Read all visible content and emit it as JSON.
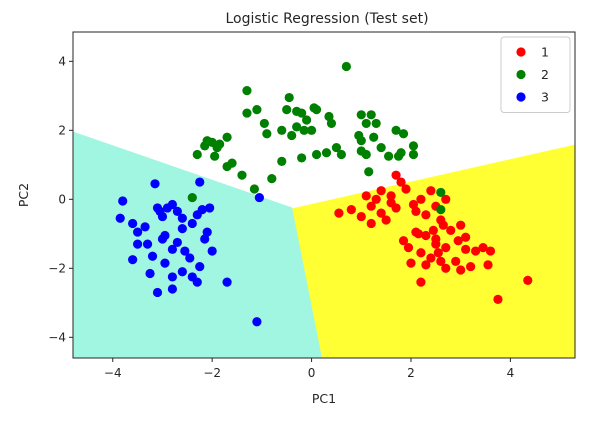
{
  "chart_data": {
    "type": "scatter",
    "title": "Logistic Regression (Test set)",
    "xlabel": "PC1",
    "ylabel": "PC2",
    "xlim": [
      -4.8,
      5.3
    ],
    "ylim": [
      -4.6,
      4.85
    ],
    "xticks": [
      -4,
      -2,
      0,
      2,
      4
    ],
    "yticks": [
      -4,
      -2,
      0,
      2,
      4
    ],
    "grid": false,
    "legend_position": "top-right",
    "decision_regions": [
      {
        "class": "1",
        "color": "#ffff33",
        "polygon": [
          [
            -0.4,
            -0.25
          ],
          [
            5.3,
            1.6
          ],
          [
            5.3,
            -4.6
          ],
          [
            0.2,
            -4.6
          ]
        ]
      },
      {
        "class": "2",
        "color": "#ffffff",
        "polygon": [
          [
            -4.8,
            1.95
          ],
          [
            -0.4,
            -0.25
          ],
          [
            5.3,
            1.6
          ],
          [
            5.3,
            4.85
          ],
          [
            -4.8,
            4.85
          ]
        ]
      },
      {
        "class": "3",
        "color": "#a0f6e0",
        "polygon": [
          [
            -4.8,
            1.95
          ],
          [
            -0.4,
            -0.25
          ],
          [
            0.2,
            -4.6
          ],
          [
            -4.8,
            -4.6
          ]
        ]
      }
    ],
    "series": [
      {
        "name": "1",
        "color": "#ff0000",
        "points": [
          [
            1.7,
            0.7
          ],
          [
            1.8,
            0.5
          ],
          [
            1.9,
            0.3
          ],
          [
            2.05,
            -0.15
          ],
          [
            1.6,
            0.1
          ],
          [
            1.4,
            0.25
          ],
          [
            1.1,
            0.1
          ],
          [
            0.55,
            -0.4
          ],
          [
            0.8,
            -0.3
          ],
          [
            1.2,
            -0.2
          ],
          [
            1.3,
            0.0
          ],
          [
            1.4,
            -0.4
          ],
          [
            1.5,
            -0.6
          ],
          [
            1.2,
            -0.7
          ],
          [
            1.0,
            -0.5
          ],
          [
            1.6,
            -0.1
          ],
          [
            1.7,
            -0.25
          ],
          [
            2.1,
            -0.35
          ],
          [
            2.3,
            -0.45
          ],
          [
            2.5,
            -0.2
          ],
          [
            2.7,
            0.0
          ],
          [
            2.4,
            0.25
          ],
          [
            2.2,
            0.0
          ],
          [
            2.6,
            -0.6
          ],
          [
            2.8,
            -0.9
          ],
          [
            3.0,
            -0.75
          ],
          [
            2.95,
            -1.2
          ],
          [
            2.7,
            -1.4
          ],
          [
            2.5,
            -1.15
          ],
          [
            2.3,
            -1.05
          ],
          [
            2.1,
            -0.95
          ],
          [
            1.95,
            -1.4
          ],
          [
            2.2,
            -1.55
          ],
          [
            2.4,
            -1.7
          ],
          [
            2.6,
            -1.8
          ],
          [
            2.0,
            -1.85
          ],
          [
            2.3,
            -1.9
          ],
          [
            2.7,
            -2.0
          ],
          [
            2.9,
            -1.8
          ],
          [
            3.1,
            -1.1
          ],
          [
            3.3,
            -1.5
          ],
          [
            3.45,
            -1.4
          ],
          [
            3.6,
            -1.5
          ],
          [
            3.55,
            -1.9
          ],
          [
            3.2,
            -1.95
          ],
          [
            3.0,
            -2.05
          ],
          [
            2.2,
            -2.4
          ],
          [
            2.5,
            -1.3
          ],
          [
            2.65,
            -0.75
          ],
          [
            1.85,
            -1.2
          ],
          [
            2.45,
            -0.9
          ],
          [
            3.75,
            -2.9
          ],
          [
            4.35,
            -2.35
          ],
          [
            3.1,
            -1.45
          ],
          [
            2.15,
            -1.0
          ],
          [
            2.55,
            -1.55
          ]
        ]
      },
      {
        "name": "2",
        "color": "#008000",
        "points": [
          [
            0.7,
            3.85
          ],
          [
            -0.45,
            2.95
          ],
          [
            -0.5,
            2.6
          ],
          [
            -0.3,
            2.55
          ],
          [
            -0.2,
            2.5
          ],
          [
            -0.1,
            2.3
          ],
          [
            -0.3,
            2.1
          ],
          [
            -0.15,
            2.0
          ],
          [
            0.1,
            2.6
          ],
          [
            0.35,
            2.4
          ],
          [
            0.4,
            2.2
          ],
          [
            0.0,
            2.0
          ],
          [
            -0.4,
            1.85
          ],
          [
            -0.6,
            2.0
          ],
          [
            -0.95,
            2.2
          ],
          [
            -1.3,
            2.5
          ],
          [
            -1.1,
            2.6
          ],
          [
            -1.3,
            3.15
          ],
          [
            -1.7,
            1.8
          ],
          [
            -1.85,
            1.6
          ],
          [
            -2.0,
            1.65
          ],
          [
            -2.1,
            1.7
          ],
          [
            -1.9,
            1.5
          ],
          [
            -1.95,
            1.25
          ],
          [
            -2.3,
            1.3
          ],
          [
            -1.6,
            1.05
          ],
          [
            -1.7,
            0.95
          ],
          [
            -1.4,
            0.7
          ],
          [
            -1.15,
            0.3
          ],
          [
            -0.8,
            0.6
          ],
          [
            -0.6,
            1.1
          ],
          [
            -0.2,
            1.2
          ],
          [
            0.3,
            1.35
          ],
          [
            0.1,
            1.3
          ],
          [
            0.5,
            1.5
          ],
          [
            0.6,
            1.3
          ],
          [
            1.0,
            1.7
          ],
          [
            1.1,
            2.2
          ],
          [
            1.2,
            2.45
          ],
          [
            1.0,
            2.45
          ],
          [
            1.3,
            2.2
          ],
          [
            1.4,
            1.5
          ],
          [
            1.55,
            1.25
          ],
          [
            1.1,
            1.3
          ],
          [
            1.0,
            1.4
          ],
          [
            1.15,
            0.8
          ],
          [
            1.7,
            2.0
          ],
          [
            1.85,
            1.9
          ],
          [
            1.8,
            1.35
          ],
          [
            1.75,
            1.25
          ],
          [
            2.05,
            1.55
          ],
          [
            2.05,
            1.3
          ],
          [
            2.6,
            0.2
          ],
          [
            2.6,
            -0.3
          ],
          [
            -2.4,
            0.05
          ],
          [
            1.25,
            1.8
          ],
          [
            0.95,
            1.85
          ],
          [
            0.05,
            2.65
          ],
          [
            -0.9,
            1.9
          ],
          [
            -2.15,
            1.55
          ]
        ]
      },
      {
        "name": "3",
        "color": "#0000ff",
        "points": [
          [
            -3.8,
            -0.05
          ],
          [
            -3.85,
            -0.55
          ],
          [
            -3.6,
            -0.7
          ],
          [
            -3.5,
            -0.95
          ],
          [
            -3.5,
            -1.3
          ],
          [
            -3.3,
            -1.3
          ],
          [
            -3.35,
            -0.8
          ],
          [
            -3.6,
            -1.75
          ],
          [
            -3.25,
            -2.15
          ],
          [
            -3.1,
            -2.7
          ],
          [
            -2.8,
            -2.25
          ],
          [
            -2.8,
            -2.6
          ],
          [
            -2.6,
            -2.1
          ],
          [
            -2.4,
            -2.25
          ],
          [
            -2.3,
            -2.4
          ],
          [
            -1.7,
            -2.4
          ],
          [
            -2.0,
            -1.5
          ],
          [
            -2.15,
            -1.15
          ],
          [
            -2.1,
            -0.95
          ],
          [
            -2.3,
            -0.45
          ],
          [
            -2.4,
            -0.7
          ],
          [
            -2.6,
            -0.55
          ],
          [
            -2.7,
            -0.35
          ],
          [
            -2.8,
            -0.15
          ],
          [
            -2.9,
            -0.25
          ],
          [
            -3.0,
            -0.5
          ],
          [
            -3.05,
            -0.35
          ],
          [
            -3.1,
            -0.25
          ],
          [
            -2.6,
            -0.85
          ],
          [
            -2.7,
            -1.25
          ],
          [
            -2.8,
            -1.45
          ],
          [
            -2.95,
            -1.85
          ],
          [
            -3.0,
            -1.15
          ],
          [
            -2.55,
            -1.5
          ],
          [
            -2.45,
            -1.7
          ],
          [
            -2.2,
            -0.3
          ],
          [
            -2.05,
            -0.25
          ],
          [
            -2.25,
            0.5
          ],
          [
            -3.15,
            0.45
          ],
          [
            -1.05,
            0.05
          ],
          [
            -2.95,
            -1.05
          ],
          [
            -1.1,
            -3.55
          ],
          [
            -2.25,
            -1.95
          ],
          [
            -3.2,
            -1.65
          ]
        ]
      }
    ]
  }
}
